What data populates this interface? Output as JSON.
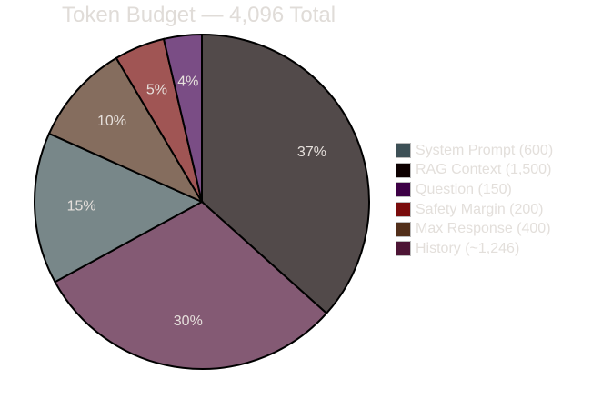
{
  "chart_data": {
    "type": "pie",
    "title": "Token Budget — 4,096 Total",
    "total": 4096,
    "start": "top",
    "direction": "clockwise",
    "legend_position": "right",
    "slices": [
      {
        "name": "System Prompt",
        "legend": "System Prompt (600)",
        "value": 600,
        "label": "15%",
        "legend_color": "#3d5056",
        "color": "#788789"
      },
      {
        "name": "RAG Context",
        "legend": "RAG Context (1,500)",
        "value": 1500,
        "label": "37%",
        "legend_color": "#0d0000",
        "color": "#524a4a"
      },
      {
        "name": "Question",
        "legend": "Question (150)",
        "value": 150,
        "label": "4%",
        "legend_color": "#3d0045",
        "color": "#7a4d85"
      },
      {
        "name": "Safety Margin",
        "legend": "Safety Margin (200)",
        "value": 200,
        "label": "5%",
        "legend_color": "#7a0c0c",
        "color": "#a05554"
      },
      {
        "name": "Max Response",
        "legend": "Max Response (400)",
        "value": 400,
        "label": "10%",
        "legend_color": "#522f1a",
        "color": "#856d5e"
      },
      {
        "name": "History",
        "legend": "History (~1,246)",
        "value": 1246,
        "label": "30%",
        "legend_color": "#4d1535",
        "color": "#845a74"
      }
    ]
  }
}
